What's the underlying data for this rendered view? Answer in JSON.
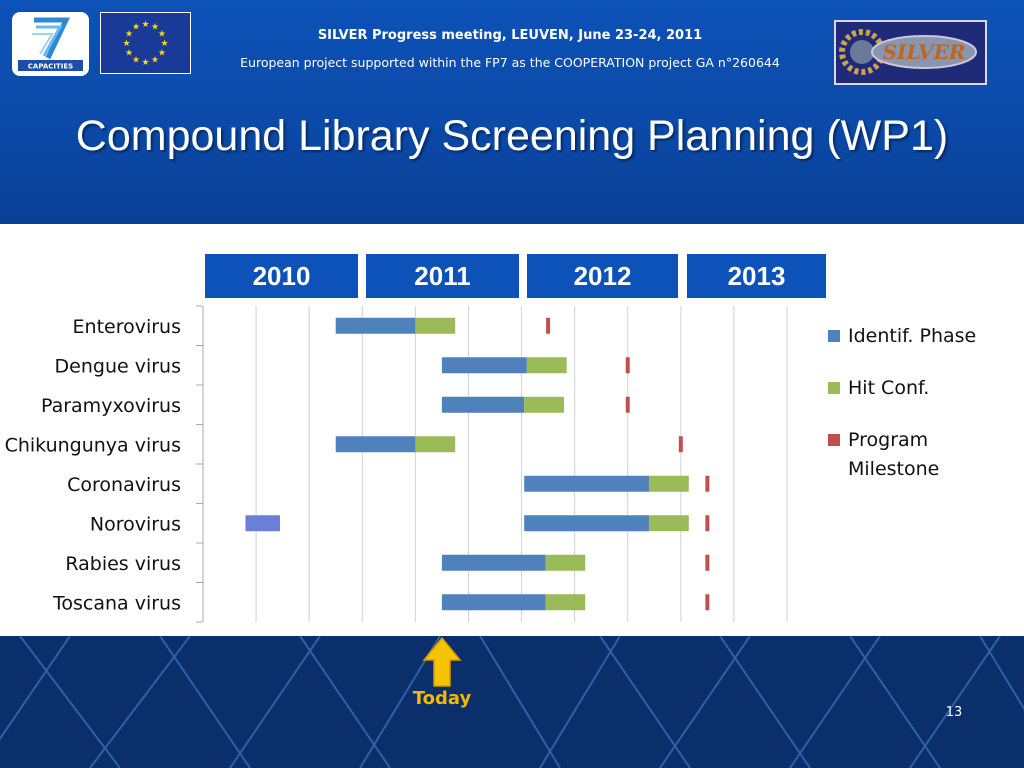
{
  "header": {
    "line1": "SILVER Progress meeting, LEUVEN, June 23-24, 2011",
    "line2": "European project supported within the FP7 as the COOPERATION project GA n°260644"
  },
  "logos": {
    "capacities": "CAPACITIES",
    "silver": "SILVER"
  },
  "slide_title": "Compound Library Screening Planning (WP1)",
  "chart_data": {
    "type": "gantt",
    "years": [
      "2010",
      "2011",
      "2012",
      "2013"
    ],
    "x_unit": "quarter",
    "x_start": "2010-Q1",
    "x_end": "2013-Q3",
    "categories": [
      "Enterovirus",
      "Dengue virus",
      "Paramyxovirus",
      "Chikungunya virus",
      "Coronavirus",
      "Norovirus",
      "Rabies virus",
      "Toscana virus"
    ],
    "series": [
      {
        "name": "Identif. Phase",
        "color": "#4f81bd",
        "ranges": [
          [
            2.5,
            4.0
          ],
          [
            4.5,
            6.1
          ],
          [
            4.5,
            6.05
          ],
          [
            2.5,
            4.0
          ],
          [
            6.05,
            8.4
          ],
          [
            6.05,
            8.4
          ],
          [
            4.5,
            6.45
          ],
          [
            4.5,
            6.45
          ]
        ]
      },
      {
        "name": "Hit Conf.",
        "color": "#9bbb59",
        "ranges": [
          [
            4.0,
            4.75
          ],
          [
            6.1,
            6.85
          ],
          [
            6.05,
            6.8
          ],
          [
            4.0,
            4.75
          ],
          [
            8.4,
            9.15
          ],
          [
            8.4,
            9.15
          ],
          [
            6.45,
            7.2
          ],
          [
            6.45,
            7.2
          ]
        ]
      },
      {
        "name": "Program Milestone",
        "color": "#c0504d",
        "values": [
          6.5,
          8.0,
          8.0,
          9.0,
          9.5,
          9.5,
          9.5,
          9.5
        ]
      }
    ],
    "extra_bar": {
      "category": "Norovirus",
      "color": "#6a7fd6",
      "range": [
        0.8,
        1.45
      ]
    },
    "legend": [
      "Identif. Phase",
      "Hit Conf.",
      "Program Milestone"
    ],
    "legend_position": "right",
    "grid": "vertical",
    "marker": {
      "label": "Today",
      "x": 4.5
    }
  },
  "page_number": "13"
}
